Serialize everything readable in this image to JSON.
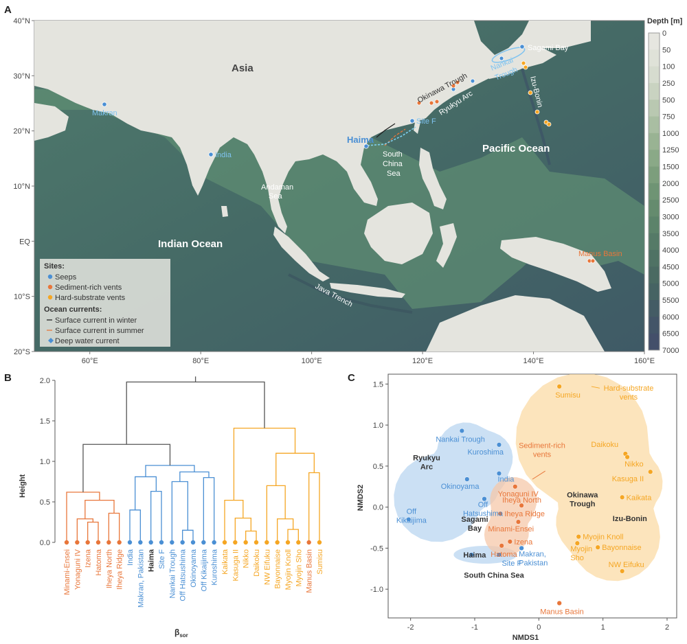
{
  "panels": {
    "a": "A",
    "b": "B",
    "c": "C"
  },
  "map": {
    "lat_labels": [
      "40°N",
      "30°N",
      "20°N",
      "10°N",
      "EQ",
      "10°S",
      "20°S"
    ],
    "lon_labels": [
      "60°E",
      "80°E",
      "100°E",
      "120°E",
      "140°E",
      "160°E"
    ],
    "place_labels": {
      "asia": "Asia",
      "indian_ocean": "Indian Ocean",
      "pacific_ocean": "Pacific Ocean",
      "andaman_1": "Andaman",
      "andaman_2": "Sea",
      "scs_1": "South",
      "scs_2": "China",
      "scs_3": "Sea",
      "java_trench": "Java Trench",
      "okinawa_trough": "Okinawa Trough",
      "ryukyu_arc": "Ryukyu Arc",
      "izu_bonin": "Izu-Bonin"
    },
    "site_labels": {
      "makran": "Makran",
      "india": "India",
      "haima": "Haima",
      "site_f": "Site F",
      "sagami_bay": "Sagami Bay",
      "nankai_1": "Nankai",
      "nankai_2": "Trough",
      "manus_basin": "Manus Basin"
    },
    "depth_title": "Depth [m]",
    "depth_ticks": [
      "0",
      "50",
      "100",
      "250",
      "500",
      "750",
      "1000",
      "1250",
      "1500",
      "2000",
      "2500",
      "3000",
      "3500",
      "4000",
      "4500",
      "5000",
      "5500",
      "6000",
      "6500",
      "7000"
    ],
    "depth_colors": [
      "#e6e6e0",
      "#dfe2d8",
      "#d6dccf",
      "#c9d3c1",
      "#b9c8b1",
      "#a9bea2",
      "#99b393",
      "#8aa987",
      "#7c9e7c",
      "#6f9474",
      "#658b6e",
      "#5c836a",
      "#557a67",
      "#4f7264",
      "#4a6a62",
      "#466363",
      "#445c65",
      "#435568",
      "#434f6a",
      "#434a6b"
    ],
    "legend": {
      "sites_title": "Sites:",
      "seeps": "Seeps",
      "sediment": "Sediment-rich vents",
      "hard": "Hard-substrate vents",
      "currents_title": "Ocean currents:",
      "winter": "Surface current in winter",
      "summer": "Surface current in summer",
      "deep": "Deep water current"
    },
    "colors": {
      "seeps": "#4a8fd4",
      "sediment": "#e8763a",
      "hard": "#f5a623"
    }
  },
  "chart_data": [
    {
      "type": "dendrogram",
      "ylabel": "Height",
      "xlabel": "β",
      "xlabel_sub": "sor",
      "ylim": [
        0,
        2.0
      ],
      "yticks": [
        0.0,
        0.5,
        1.0,
        1.5,
        2.0
      ],
      "ytick_labels": [
        "0.0",
        "0.5",
        "1.0",
        "1.5",
        "2.0"
      ],
      "leaves": [
        {
          "label": "Minami-Ensei",
          "group": "sediment"
        },
        {
          "label": "Yonaguni IV",
          "group": "sediment"
        },
        {
          "label": "Izena",
          "group": "sediment"
        },
        {
          "label": "Hatoma",
          "group": "sediment"
        },
        {
          "label": "Iheya North",
          "group": "sediment"
        },
        {
          "label": "Iheya Ridge",
          "group": "sediment"
        },
        {
          "label": "India",
          "group": "seeps"
        },
        {
          "label": "Makran, Pakistan",
          "group": "seeps"
        },
        {
          "label": "Haima",
          "group": "seeps",
          "bold": true
        },
        {
          "label": "Site F",
          "group": "seeps"
        },
        {
          "label": "Nankai Trough",
          "group": "seeps"
        },
        {
          "label": "Off Hatsushima",
          "group": "seeps"
        },
        {
          "label": "Okinoyama",
          "group": "seeps"
        },
        {
          "label": "Off Kikaijima",
          "group": "seeps"
        },
        {
          "label": "Kuroshima",
          "group": "seeps"
        },
        {
          "label": "Kaikata",
          "group": "hard"
        },
        {
          "label": "Kasuga II",
          "group": "hard"
        },
        {
          "label": "Nikko",
          "group": "hard"
        },
        {
          "label": "Daikoku",
          "group": "hard"
        },
        {
          "label": "NW Eifuku",
          "group": "hard"
        },
        {
          "label": "Bayonnaise",
          "group": "hard"
        },
        {
          "label": "Myojin Knoll",
          "group": "hard"
        },
        {
          "label": "Myojin Sho",
          "group": "hard"
        },
        {
          "label": "Manus Basin",
          "group": "sediment"
        },
        {
          "label": "Sumisu",
          "group": "hard"
        }
      ],
      "merges": [
        {
          "a": 2,
          "b": 3,
          "h": 0.25,
          "group": "sediment"
        },
        {
          "a": 1,
          "b": 25,
          "h": 0.29,
          "group": "sediment"
        },
        {
          "a": 4,
          "b": 5,
          "h": 0.36,
          "group": "sediment"
        },
        {
          "a": 26,
          "b": 27,
          "h": 0.52,
          "group": "sediment"
        },
        {
          "a": 0,
          "b": 28,
          "h": 0.62,
          "group": "sediment"
        },
        {
          "a": 11,
          "b": 12,
          "h": 0.15,
          "group": "seeps"
        },
        {
          "a": 8,
          "b": 9,
          "h": 0.63,
          "group": "seeps"
        },
        {
          "a": 6,
          "b": 7,
          "h": 0.4,
          "group": "seeps"
        },
        {
          "a": 10,
          "b": 30,
          "h": 0.75,
          "group": "seeps"
        },
        {
          "a": 13,
          "b": 14,
          "h": 0.8,
          "group": "seeps"
        },
        {
          "a": 33,
          "b": 34,
          "h": 0.87,
          "group": "seeps"
        },
        {
          "a": 31,
          "b": 32,
          "h": 0.81,
          "group": "seeps"
        },
        {
          "a": 35,
          "b": 36,
          "h": 0.95,
          "group": "seeps"
        },
        {
          "a": 17,
          "b": 18,
          "h": 0.14,
          "group": "hard"
        },
        {
          "a": 16,
          "b": 38,
          "h": 0.3,
          "group": "hard"
        },
        {
          "a": 15,
          "b": 39,
          "h": 0.52,
          "group": "hard"
        },
        {
          "a": 21,
          "b": 22,
          "h": 0.16,
          "group": "hard"
        },
        {
          "a": 20,
          "b": 41,
          "h": 0.29,
          "group": "hard"
        },
        {
          "a": 19,
          "b": 42,
          "h": 0.7,
          "group": "hard"
        },
        {
          "a": 23,
          "b": 24,
          "h": 0.86,
          "group": "hard"
        },
        {
          "a": 43,
          "b": 44,
          "h": 1.1,
          "group": "hard"
        },
        {
          "a": 40,
          "b": 45,
          "h": 1.41,
          "group": "hard"
        },
        {
          "a": 29,
          "b": 37,
          "h": 1.21,
          "group": "root"
        },
        {
          "a": 47,
          "b": 46,
          "h": 1.98,
          "group": "root"
        }
      ]
    },
    {
      "type": "scatter",
      "xlabel": "NMDS1",
      "ylabel": "NMDS2",
      "xlim": [
        -2.35,
        2.15
      ],
      "ylim": [
        -1.35,
        1.62
      ],
      "xticks": [
        -2,
        -1,
        0,
        1,
        2
      ],
      "xtick_labels": [
        "-2",
        "-1",
        "0",
        "1",
        "2"
      ],
      "yticks": [
        -1.0,
        -0.5,
        0.0,
        0.5,
        1.0,
        1.5
      ],
      "ytick_labels": [
        "-1.0",
        "-0.5",
        "0.0",
        "0.5",
        "1.0",
        "1.5"
      ],
      "points": [
        {
          "label": "Nankai Trough",
          "x": -1.2,
          "y": 0.93,
          "group": "seeps"
        },
        {
          "label": "Kuroshima",
          "x": -0.62,
          "y": 0.76,
          "group": "seeps"
        },
        {
          "label": "Okinoyama",
          "x": -1.12,
          "y": 0.34,
          "group": "seeps"
        },
        {
          "label": "India",
          "x": -0.62,
          "y": 0.41,
          "group": "seeps"
        },
        {
          "label": "Off Hatsushima",
          "x": -0.85,
          "y": 0.1,
          "group": "seeps"
        },
        {
          "label": "Off Kikaijima",
          "x": -2.03,
          "y": -0.15,
          "group": "seeps"
        },
        {
          "label": "Haima",
          "x": -1.05,
          "y": -0.58,
          "group": "seeps"
        },
        {
          "label": "Site F",
          "x": -0.62,
          "y": -0.58,
          "group": "seeps"
        },
        {
          "label": "Makran, Pakistan",
          "x": -0.27,
          "y": -0.5,
          "group": "seeps"
        },
        {
          "label": "Yonaguni IV",
          "x": -0.37,
          "y": 0.25,
          "group": "sediment"
        },
        {
          "label": "Iheya North",
          "x": -0.27,
          "y": 0.02,
          "group": "sediment"
        },
        {
          "label": "Iheya Ridge",
          "x": -0.6,
          "y": -0.08,
          "group": "sediment"
        },
        {
          "label": "Minami-Ensei",
          "x": -0.32,
          "y": -0.18,
          "group": "sediment"
        },
        {
          "label": "Izena",
          "x": -0.45,
          "y": -0.42,
          "group": "sediment"
        },
        {
          "label": "Hatoma",
          "x": -0.58,
          "y": -0.47,
          "group": "sediment"
        },
        {
          "label": "Manus Basin",
          "x": 0.32,
          "y": -1.17,
          "group": "sediment"
        },
        {
          "label": "Sumisu",
          "x": 0.32,
          "y": 1.47,
          "group": "hard"
        },
        {
          "label": "Daikoku",
          "x": 1.35,
          "y": 0.65,
          "group": "hard"
        },
        {
          "label": "Nikko",
          "x": 1.38,
          "y": 0.61,
          "group": "hard"
        },
        {
          "label": "Kasuga II",
          "x": 1.74,
          "y": 0.43,
          "group": "hard"
        },
        {
          "label": "Kaikata",
          "x": 1.3,
          "y": 0.12,
          "group": "hard"
        },
        {
          "label": "Myojin Knoll",
          "x": 0.62,
          "y": -0.36,
          "group": "hard"
        },
        {
          "label": "Myojin Sho",
          "x": 0.6,
          "y": -0.44,
          "group": "hard"
        },
        {
          "label": "Bayonnaise",
          "x": 0.92,
          "y": -0.49,
          "group": "hard"
        },
        {
          "label": "NW Eifuku",
          "x": 1.3,
          "y": -0.78,
          "group": "hard"
        }
      ],
      "annotations": {
        "sediment_rich": [
          "Sediment-rich",
          "vents"
        ],
        "hard_substrate": [
          "Hard-substrate",
          "vents"
        ],
        "ryukyu_arc": [
          "Ryukyu",
          "Arc"
        ],
        "sagami_bay": [
          "Sagami",
          "Bay"
        ],
        "okinawa_trough": [
          "Okinawa",
          "Trough"
        ],
        "izu_bonin": "Izu-Bonin",
        "south_china_sea": "South China Sea"
      }
    }
  ]
}
